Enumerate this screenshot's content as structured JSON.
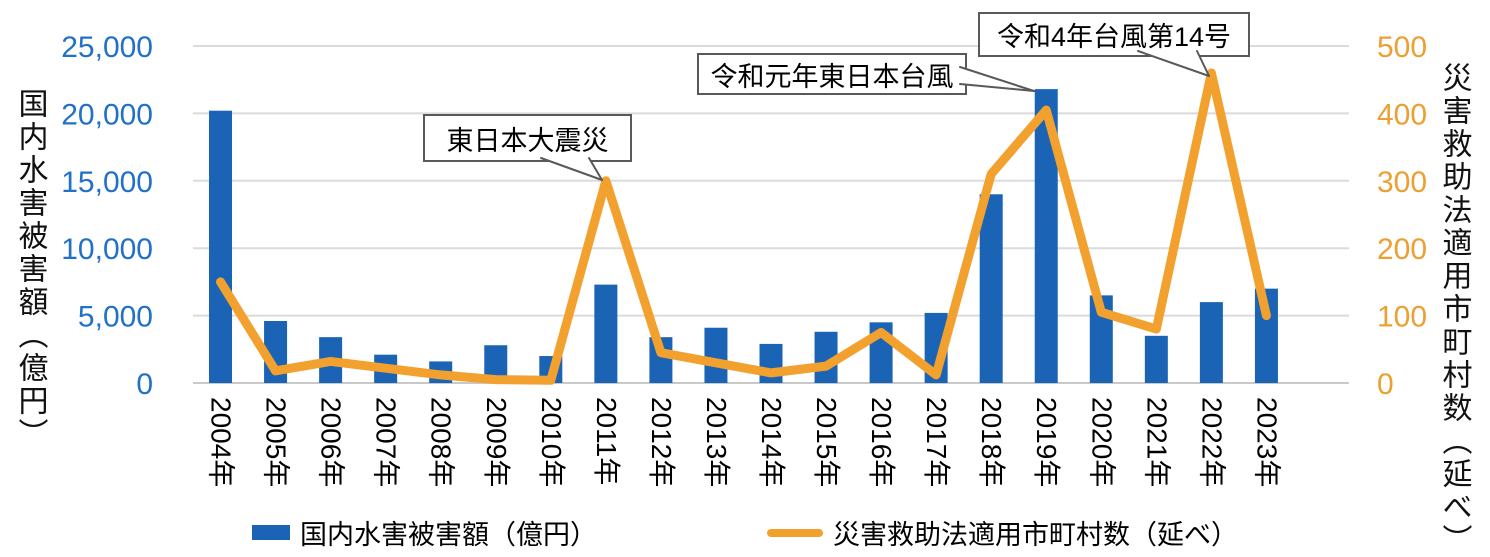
{
  "chart_data": {
    "type": "bar",
    "subtype": "combo-bar-line-dual-axis",
    "categories": [
      "2004年",
      "2005年",
      "2006年",
      "2007年",
      "2008年",
      "2009年",
      "2010年",
      "2011年",
      "2012年",
      "2013年",
      "2014年",
      "2015年",
      "2016年",
      "2017年",
      "2018年",
      "2019年",
      "2020年",
      "2021年",
      "2022年",
      "2023年"
    ],
    "series": [
      {
        "name": "国内水害被害額（億円）",
        "type": "bar",
        "axis": "left",
        "values": [
          20200,
          4600,
          3400,
          2100,
          1600,
          2800,
          2000,
          7300,
          3400,
          4100,
          2900,
          3800,
          4500,
          5200,
          14000,
          21800,
          6500,
          3500,
          6000,
          7000
        ]
      },
      {
        "name": "災害救助法適用市町村数（延べ）",
        "type": "line",
        "axis": "right",
        "values": [
          150,
          18,
          32,
          22,
          12,
          5,
          4,
          300,
          45,
          30,
          15,
          25,
          75,
          12,
          310,
          405,
          105,
          80,
          460,
          100
        ]
      }
    ],
    "left_axis": {
      "title": "国内水害被害額（億円）",
      "min": 0,
      "max": 25000,
      "tick_values": [
        0,
        5000,
        10000,
        15000,
        20000,
        25000
      ],
      "tick_labels": [
        "0",
        "5,000",
        "10,000",
        "15,000",
        "20,000",
        "25,000"
      ]
    },
    "right_axis": {
      "title": "災害救助法適用市町村数（延べ）",
      "min": 0,
      "max": 500,
      "tick_values": [
        0,
        100,
        200,
        300,
        400,
        500
      ],
      "tick_labels": [
        "0",
        "100",
        "200",
        "300",
        "400",
        "500"
      ]
    },
    "annotations": [
      {
        "label": "東日本大震災",
        "target_year": "2011年",
        "target_series": "line"
      },
      {
        "label": "令和元年東日本台風",
        "target_year": "2019年",
        "target_series": "bar"
      },
      {
        "label": "令和4年台風第14号",
        "target_year": "2022年",
        "target_series": "line"
      }
    ],
    "legend": [
      "国内水害被害額（億円）",
      "災害救助法適用市町村数（延べ）"
    ],
    "grid": true,
    "legend_position": "bottom",
    "colors": {
      "bar": "#1A63B5",
      "line": "#F2A12F",
      "left_tick": "#2170C9",
      "right_tick": "#EC9F33",
      "gridline": "#DBDBDB",
      "baseline": "#C9C9C9",
      "annotation_border": "#595959",
      "text": "#000000"
    }
  }
}
